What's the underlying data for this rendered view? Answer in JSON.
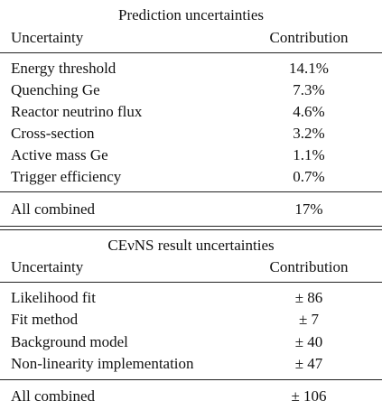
{
  "sections": [
    {
      "title": "Prediction uncertainties",
      "header": [
        "Uncertainty",
        "Contribution"
      ],
      "rows": [
        [
          "Energy threshold",
          "14.1%"
        ],
        [
          "Quenching Ge",
          "7.3%"
        ],
        [
          "Reactor neutrino flux",
          "4.6%"
        ],
        [
          "Cross-section",
          "3.2%"
        ],
        [
          "Active mass Ge",
          "1.1%"
        ],
        [
          "Trigger efficiency",
          "0.7%"
        ]
      ],
      "total": [
        "All combined",
        "17%"
      ]
    },
    {
      "title": "CEνNS result uncertainties",
      "header": [
        "Uncertainty",
        "Contribution"
      ],
      "rows": [
        [
          "Likelihood fit",
          "± 86"
        ],
        [
          "Fit method",
          "± 7"
        ],
        [
          "Background model",
          "± 40"
        ],
        [
          "Non-linearity implementation",
          "± 47"
        ]
      ],
      "total": [
        "All combined",
        "± 106"
      ]
    }
  ]
}
